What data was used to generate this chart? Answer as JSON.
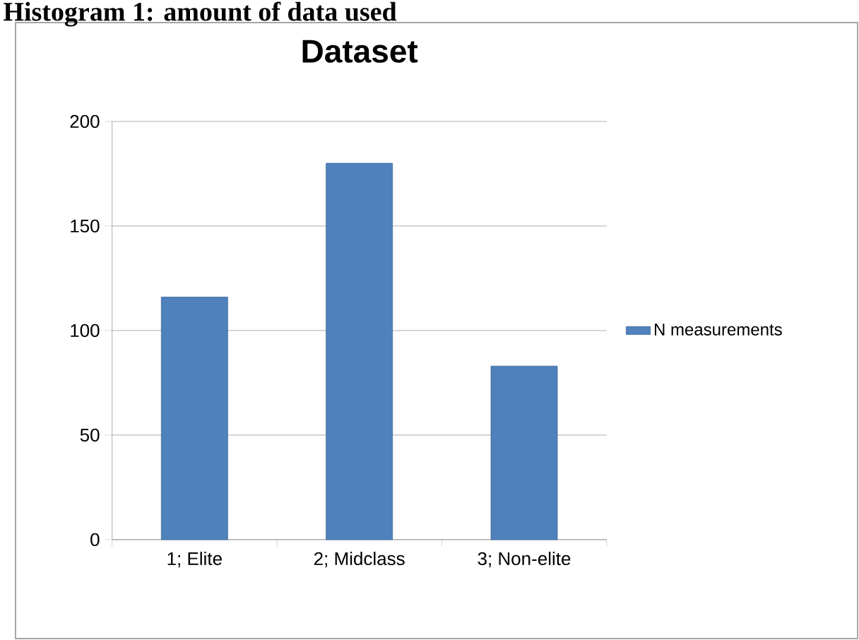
{
  "chart_data": {
    "type": "bar",
    "title": "Dataset",
    "annotations": [
      "Histogram 1: amount of data used"
    ],
    "categories": [
      "1; Elite",
      "2; Midclass",
      "3; Non-elite"
    ],
    "series": [
      {
        "name": "N measurements",
        "color": "#4f81bd",
        "values": [
          116,
          180,
          83
        ]
      }
    ],
    "ylim": [
      0,
      200
    ],
    "yticks": [
      0,
      50,
      100,
      150,
      200
    ],
    "grid": "y",
    "legend": "right"
  }
}
